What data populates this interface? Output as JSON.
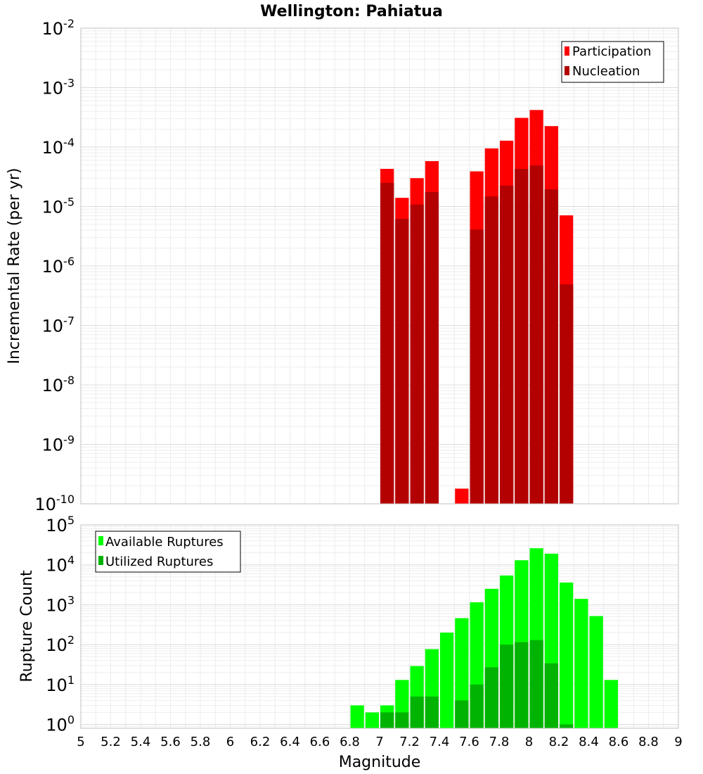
{
  "title": "Wellington: Pahiatua",
  "chart_data": [
    {
      "type": "bar",
      "ylabel": "Incremental Rate (per yr)",
      "yscale": "log",
      "ylim": [
        1e-10,
        0.01
      ],
      "y_ticks": [
        {
          "base": "10",
          "exp": "-10",
          "value": 1e-10
        },
        {
          "base": "10",
          "exp": "-9",
          "value": 1e-09
        },
        {
          "base": "10",
          "exp": "-8",
          "value": 1e-08
        },
        {
          "base": "10",
          "exp": "-7",
          "value": 1e-07
        },
        {
          "base": "10",
          "exp": "-6",
          "value": 1e-06
        },
        {
          "base": "10",
          "exp": "-5",
          "value": 1e-05
        },
        {
          "base": "10",
          "exp": "-4",
          "value": 0.0001
        },
        {
          "base": "10",
          "exp": "-3",
          "value": 0.001
        },
        {
          "base": "10",
          "exp": "-2",
          "value": 0.01
        }
      ],
      "legend": {
        "position": "top-right"
      },
      "grid": true,
      "series": [
        {
          "name": "Participation",
          "color": "#ff0000",
          "points": [
            [
              7.0,
              4.3e-05
            ],
            [
              7.1,
              1.4e-05
            ],
            [
              7.2,
              3e-05
            ],
            [
              7.3,
              5.8e-05
            ],
            [
              7.5,
              1.8e-10
            ],
            [
              7.6,
              3.9e-05
            ],
            [
              7.7,
              9.5e-05
            ],
            [
              7.8,
              0.000128
            ],
            [
              7.9,
              0.00031
            ],
            [
              8.0,
              0.00042
            ],
            [
              8.1,
              0.000225
            ],
            [
              8.2,
              7.1e-06
            ]
          ]
        },
        {
          "name": "Nucleation",
          "color": "#b30000",
          "points": [
            [
              7.0,
              2.5e-05
            ],
            [
              7.1,
              6.2e-06
            ],
            [
              7.2,
              1.08e-05
            ],
            [
              7.3,
              1.75e-05
            ],
            [
              7.6,
              4.1e-06
            ],
            [
              7.7,
              1.48e-05
            ],
            [
              7.8,
              2.25e-05
            ],
            [
              7.9,
              4.3e-05
            ],
            [
              8.0,
              4.9e-05
            ],
            [
              8.1,
              1.95e-05
            ],
            [
              8.2,
              4.9e-07
            ]
          ]
        }
      ]
    },
    {
      "type": "bar",
      "ylabel": "Rupture Count",
      "xlabel": "Magnitude",
      "yscale": "log",
      "ylim": [
        0.8,
        100000
      ],
      "y_ticks": [
        {
          "base": "10",
          "exp": "0",
          "value": 1
        },
        {
          "base": "10",
          "exp": "1",
          "value": 10
        },
        {
          "base": "10",
          "exp": "2",
          "value": 100
        },
        {
          "base": "10",
          "exp": "3",
          "value": 1000
        },
        {
          "base": "10",
          "exp": "4",
          "value": 10000
        },
        {
          "base": "10",
          "exp": "5",
          "value": 100000
        }
      ],
      "xlim": [
        5,
        9
      ],
      "x_ticks": [
        "5",
        "5.2",
        "5.4",
        "5.6",
        "5.8",
        "6",
        "6.2",
        "6.4",
        "6.6",
        "6.8",
        "7",
        "7.2",
        "7.4",
        "7.6",
        "7.8",
        "8",
        "8.2",
        "8.4",
        "8.6",
        "8.8",
        "9"
      ],
      "legend": {
        "position": "top-left"
      },
      "grid": true,
      "series": [
        {
          "name": "Available Ruptures",
          "color": "#00ff00",
          "points": [
            [
              6.8,
              3
            ],
            [
              6.9,
              2
            ],
            [
              7.0,
              3
            ],
            [
              7.1,
              13
            ],
            [
              7.2,
              29
            ],
            [
              7.3,
              77
            ],
            [
              7.4,
              200
            ],
            [
              7.5,
              460
            ],
            [
              7.6,
              1150
            ],
            [
              7.7,
              2500
            ],
            [
              7.8,
              5400
            ],
            [
              7.9,
              13000
            ],
            [
              8.0,
              26000
            ],
            [
              8.1,
              19000
            ],
            [
              8.2,
              3600
            ],
            [
              8.3,
              1400
            ],
            [
              8.4,
              520
            ],
            [
              8.5,
              13
            ]
          ]
        },
        {
          "name": "Utilized Ruptures",
          "color": "#00b300",
          "points": [
            [
              7.0,
              2
            ],
            [
              7.1,
              2
            ],
            [
              7.2,
              5
            ],
            [
              7.3,
              5
            ],
            [
              7.5,
              4
            ],
            [
              7.6,
              10
            ],
            [
              7.7,
              27
            ],
            [
              7.8,
              100
            ],
            [
              7.9,
              115
            ],
            [
              8.0,
              130
            ],
            [
              8.1,
              34
            ],
            [
              8.2,
              1
            ]
          ]
        }
      ]
    }
  ]
}
